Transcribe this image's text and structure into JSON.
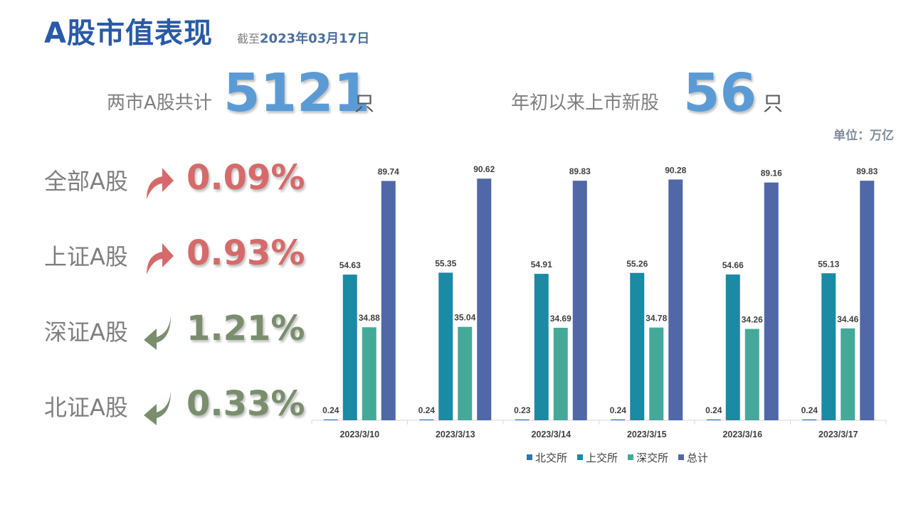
{
  "header": {
    "title": "A股市值表现",
    "subtitle_lead": "截至",
    "subtitle_date": "2023年03月17日"
  },
  "stats": {
    "total_label": "两市A股共计",
    "total_value": "5121",
    "total_unit": "只",
    "new_label": "年初以来上市新股",
    "new_value": "56",
    "new_unit": "只"
  },
  "unit_note": "单位：万亿",
  "indices": [
    {
      "name": "全部A股",
      "change": "0.09%",
      "direction": "up",
      "color": "#d66a6a"
    },
    {
      "name": "上证A股",
      "change": "0.93%",
      "direction": "up",
      "color": "#d66a6a"
    },
    {
      "name": "深证A股",
      "change": "1.21%",
      "direction": "down",
      "color": "#7a8e6e"
    },
    {
      "name": "北证A股",
      "change": "0.33%",
      "direction": "down",
      "color": "#7a8e6e"
    }
  ],
  "chart_data": {
    "type": "bar",
    "categories": [
      "2023/3/10",
      "2023/3/13",
      "2023/3/14",
      "2023/3/15",
      "2023/3/16",
      "2023/3/17"
    ],
    "series": [
      {
        "name": "北交所",
        "color": "#2e75b6",
        "values": [
          0.24,
          0.24,
          0.23,
          0.24,
          0.24,
          0.24
        ]
      },
      {
        "name": "上交所",
        "color": "#1a8aa5",
        "values": [
          54.63,
          55.35,
          54.91,
          55.26,
          54.66,
          55.13
        ]
      },
      {
        "name": "深交所",
        "color": "#45a99a",
        "values": [
          34.88,
          35.04,
          34.69,
          34.78,
          34.26,
          34.46
        ]
      },
      {
        "name": "总计",
        "color": "#5067a8",
        "values": [
          89.74,
          90.62,
          89.83,
          90.28,
          89.16,
          89.83
        ]
      }
    ],
    "ylim": [
      0,
      100
    ],
    "grid": false,
    "legend_position": "bottom"
  }
}
